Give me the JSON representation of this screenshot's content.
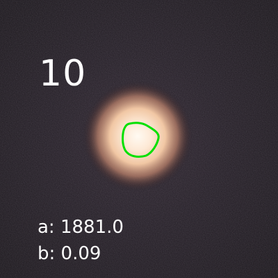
{
  "overlay": {
    "frame_number": "10",
    "readout_a": "a: 1881.0",
    "readout_b": "b: 0.09"
  },
  "colors": {
    "contour": "#00e000",
    "text": "#ffffff",
    "background": "#1c181d",
    "glow_core": "#fff4e8",
    "glow_mid": "#f2c9a8",
    "glow_outer": "#8a5a4a"
  },
  "icons": {
    "star": "star-blob-icon"
  }
}
